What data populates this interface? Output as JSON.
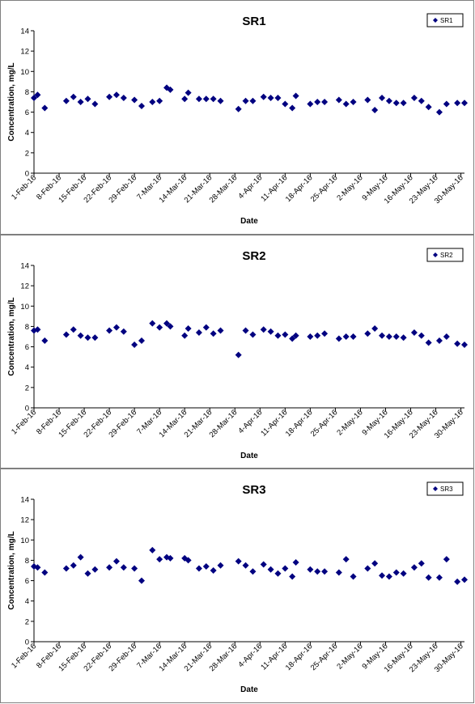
{
  "chart_data": [
    {
      "type": "scatter",
      "title": "SR1",
      "xlabel": "Date",
      "ylabel": "Concentration, mg/L",
      "ylim": [
        0,
        14
      ],
      "yticks": [
        0,
        2,
        4,
        6,
        8,
        10,
        12,
        14
      ],
      "xlim": [
        "2016-02-01",
        "2016-05-31"
      ],
      "xtick_labels": [
        "1-Feb-16",
        "8-Feb-16",
        "15-Feb-16",
        "22-Feb-16",
        "29-Feb-16",
        "7-Mar-16",
        "14-Mar-16",
        "21-Mar-16",
        "28-Mar-16",
        "4-Apr-16",
        "11-Apr-16",
        "18-Apr-16",
        "25-Apr-16",
        "2-May-16",
        "9-May-16",
        "16-May-16",
        "23-May-16",
        "30-May-16"
      ],
      "legend": {
        "position": "top-right"
      },
      "grid": false,
      "series": [
        {
          "name": "SR1",
          "color": "#000080",
          "marker": "diamond",
          "x": [
            "2016-02-01",
            "2016-02-02",
            "2016-02-04",
            "2016-02-10",
            "2016-02-12",
            "2016-02-14",
            "2016-02-16",
            "2016-02-18",
            "2016-02-22",
            "2016-02-24",
            "2016-02-26",
            "2016-02-29",
            "2016-03-02",
            "2016-03-05",
            "2016-03-07",
            "2016-03-09",
            "2016-03-10",
            "2016-03-14",
            "2016-03-15",
            "2016-03-18",
            "2016-03-20",
            "2016-03-22",
            "2016-03-24",
            "2016-03-29",
            "2016-03-31",
            "2016-04-02",
            "2016-04-05",
            "2016-04-07",
            "2016-04-09",
            "2016-04-11",
            "2016-04-13",
            "2016-04-14",
            "2016-04-18",
            "2016-04-20",
            "2016-04-22",
            "2016-04-26",
            "2016-04-28",
            "2016-04-30",
            "2016-05-04",
            "2016-05-06",
            "2016-05-08",
            "2016-05-10",
            "2016-05-12",
            "2016-05-14",
            "2016-05-17",
            "2016-05-19",
            "2016-05-21",
            "2016-05-24",
            "2016-05-26",
            "2016-05-29",
            "2016-05-31"
          ],
          "y": [
            7.4,
            7.7,
            6.4,
            7.1,
            7.5,
            7.0,
            7.3,
            6.8,
            7.5,
            7.7,
            7.4,
            7.2,
            6.6,
            7.0,
            7.1,
            8.4,
            8.2,
            7.3,
            7.9,
            7.3,
            7.3,
            7.3,
            7.1,
            6.3,
            7.1,
            7.1,
            7.5,
            7.4,
            7.4,
            6.8,
            6.4,
            7.6,
            6.8,
            7.0,
            7.0,
            7.2,
            6.8,
            7.0,
            7.2,
            6.2,
            7.4,
            7.1,
            6.9,
            6.9,
            7.4,
            7.1,
            6.5,
            6.0,
            6.8,
            6.9,
            6.9
          ]
        }
      ]
    },
    {
      "type": "scatter",
      "title": "SR2",
      "xlabel": "Date",
      "ylabel": "Concentration, mg/L",
      "ylim": [
        0,
        14
      ],
      "yticks": [
        0,
        2,
        4,
        6,
        8,
        10,
        12,
        14
      ],
      "xlim": [
        "2016-02-01",
        "2016-05-31"
      ],
      "xtick_labels": [
        "1-Feb-16",
        "8-Feb-16",
        "15-Feb-16",
        "22-Feb-16",
        "29-Feb-16",
        "7-Mar-16",
        "14-Mar-16",
        "21-Mar-16",
        "28-Mar-16",
        "4-Apr-16",
        "11-Apr-16",
        "18-Apr-16",
        "25-Apr-16",
        "2-May-16",
        "9-May-16",
        "16-May-16",
        "23-May-16",
        "30-May-16"
      ],
      "legend": {
        "position": "top-right"
      },
      "grid": false,
      "series": [
        {
          "name": "SR2",
          "color": "#000080",
          "marker": "diamond",
          "x": [
            "2016-02-01",
            "2016-02-02",
            "2016-02-04",
            "2016-02-10",
            "2016-02-12",
            "2016-02-14",
            "2016-02-16",
            "2016-02-18",
            "2016-02-22",
            "2016-02-24",
            "2016-02-26",
            "2016-02-29",
            "2016-03-02",
            "2016-03-05",
            "2016-03-07",
            "2016-03-09",
            "2016-03-10",
            "2016-03-14",
            "2016-03-15",
            "2016-03-18",
            "2016-03-20",
            "2016-03-22",
            "2016-03-24",
            "2016-03-29",
            "2016-03-31",
            "2016-04-02",
            "2016-04-05",
            "2016-04-07",
            "2016-04-09",
            "2016-04-11",
            "2016-04-13",
            "2016-04-14",
            "2016-04-18",
            "2016-04-20",
            "2016-04-22",
            "2016-04-26",
            "2016-04-28",
            "2016-04-30",
            "2016-05-04",
            "2016-05-06",
            "2016-05-08",
            "2016-05-10",
            "2016-05-12",
            "2016-05-14",
            "2016-05-17",
            "2016-05-19",
            "2016-05-21",
            "2016-05-24",
            "2016-05-26",
            "2016-05-29",
            "2016-05-31"
          ],
          "y": [
            7.6,
            7.7,
            6.6,
            7.2,
            7.7,
            7.1,
            6.9,
            6.9,
            7.6,
            7.9,
            7.5,
            6.2,
            6.6,
            8.3,
            7.9,
            8.3,
            8.0,
            7.1,
            7.8,
            7.4,
            7.9,
            7.3,
            7.6,
            5.2,
            7.6,
            7.2,
            7.7,
            7.5,
            7.1,
            7.2,
            6.8,
            7.1,
            7.0,
            7.1,
            7.3,
            6.8,
            7.0,
            7.0,
            7.3,
            7.8,
            7.1,
            7.0,
            7.0,
            6.9,
            7.4,
            7.1,
            6.4,
            6.6,
            7.0,
            6.3,
            6.2
          ]
        }
      ]
    },
    {
      "type": "scatter",
      "title": "SR3",
      "xlabel": "Date",
      "ylabel": "Concentration, mg/L",
      "ylim": [
        0,
        14
      ],
      "yticks": [
        0,
        2,
        4,
        6,
        8,
        10,
        12,
        14
      ],
      "xlim": [
        "2016-02-01",
        "2016-05-31"
      ],
      "xtick_labels": [
        "1-Feb-16",
        "8-Feb-16",
        "15-Feb-16",
        "22-Feb-16",
        "29-Feb-16",
        "7-Mar-16",
        "14-Mar-16",
        "21-Mar-16",
        "28-Mar-16",
        "4-Apr-16",
        "11-Apr-16",
        "18-Apr-16",
        "25-Apr-16",
        "2-May-16",
        "9-May-16",
        "16-May-16",
        "23-May-16",
        "30-May-16"
      ],
      "legend": {
        "position": "top-right"
      },
      "grid": false,
      "series": [
        {
          "name": "SR3",
          "color": "#000080",
          "marker": "diamond",
          "x": [
            "2016-02-01",
            "2016-02-02",
            "2016-02-04",
            "2016-02-10",
            "2016-02-12",
            "2016-02-14",
            "2016-02-16",
            "2016-02-18",
            "2016-02-22",
            "2016-02-24",
            "2016-02-26",
            "2016-02-29",
            "2016-03-02",
            "2016-03-05",
            "2016-03-07",
            "2016-03-09",
            "2016-03-10",
            "2016-03-14",
            "2016-03-15",
            "2016-03-18",
            "2016-03-20",
            "2016-03-22",
            "2016-03-24",
            "2016-03-29",
            "2016-03-31",
            "2016-04-02",
            "2016-04-05",
            "2016-04-07",
            "2016-04-09",
            "2016-04-11",
            "2016-04-13",
            "2016-04-14",
            "2016-04-18",
            "2016-04-20",
            "2016-04-22",
            "2016-04-26",
            "2016-04-28",
            "2016-04-30",
            "2016-05-04",
            "2016-05-06",
            "2016-05-08",
            "2016-05-10",
            "2016-05-12",
            "2016-05-14",
            "2016-05-17",
            "2016-05-19",
            "2016-05-21",
            "2016-05-24",
            "2016-05-26",
            "2016-05-29",
            "2016-05-31"
          ],
          "y": [
            7.4,
            7.3,
            6.8,
            7.2,
            7.5,
            8.3,
            6.7,
            7.1,
            7.3,
            7.9,
            7.3,
            7.2,
            6.0,
            9.0,
            8.1,
            8.3,
            8.2,
            8.2,
            8.0,
            7.2,
            7.4,
            7.0,
            7.5,
            7.9,
            7.5,
            6.9,
            7.6,
            7.1,
            6.7,
            7.2,
            6.4,
            7.8,
            7.1,
            6.9,
            6.9,
            6.8,
            8.1,
            6.4,
            7.2,
            7.7,
            6.5,
            6.4,
            6.8,
            6.7,
            7.3,
            7.7,
            6.3,
            6.3,
            8.1,
            5.9,
            6.1
          ]
        }
      ]
    }
  ]
}
